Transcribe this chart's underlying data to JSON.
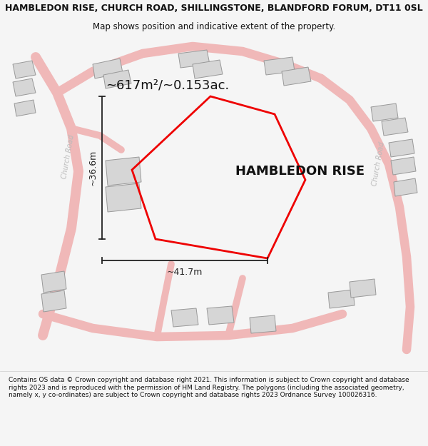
{
  "title_line1": "HAMBLEDON RISE, CHURCH ROAD, SHILLINGSTONE, BLANDFORD FORUM, DT11 0SL",
  "title_line2": "Map shows position and indicative extent of the property.",
  "property_name": "HAMBLEDON RISE",
  "area_label": "~617m²/~0.153ac.",
  "width_label": "~41.7m",
  "height_label": "~36.6m",
  "footer_text": "Contains OS data © Crown copyright and database right 2021. This information is subject to Crown copyright and database rights 2023 and is reproduced with the permission of HM Land Registry. The polygons (including the associated geometry, namely x, y co-ordinates) are subject to Crown copyright and database rights 2023 Ordnance Survey 100026316.",
  "bg_color": "#f5f5f5",
  "map_bg": "#f5f5f5",
  "road_color": "#f0b8b8",
  "building_fill": "#d6d6d6",
  "building_edge": "#999999",
  "road_label_color": "#bbbbbb",
  "dim_color": "#222222",
  "text_color": "#111111",
  "red_color": "#ee0000",
  "title_fontsize": 9.0,
  "subtitle_fontsize": 8.5,
  "area_fontsize": 13,
  "propname_fontsize": 13,
  "dim_fontsize": 9,
  "footer_fontsize": 6.5
}
